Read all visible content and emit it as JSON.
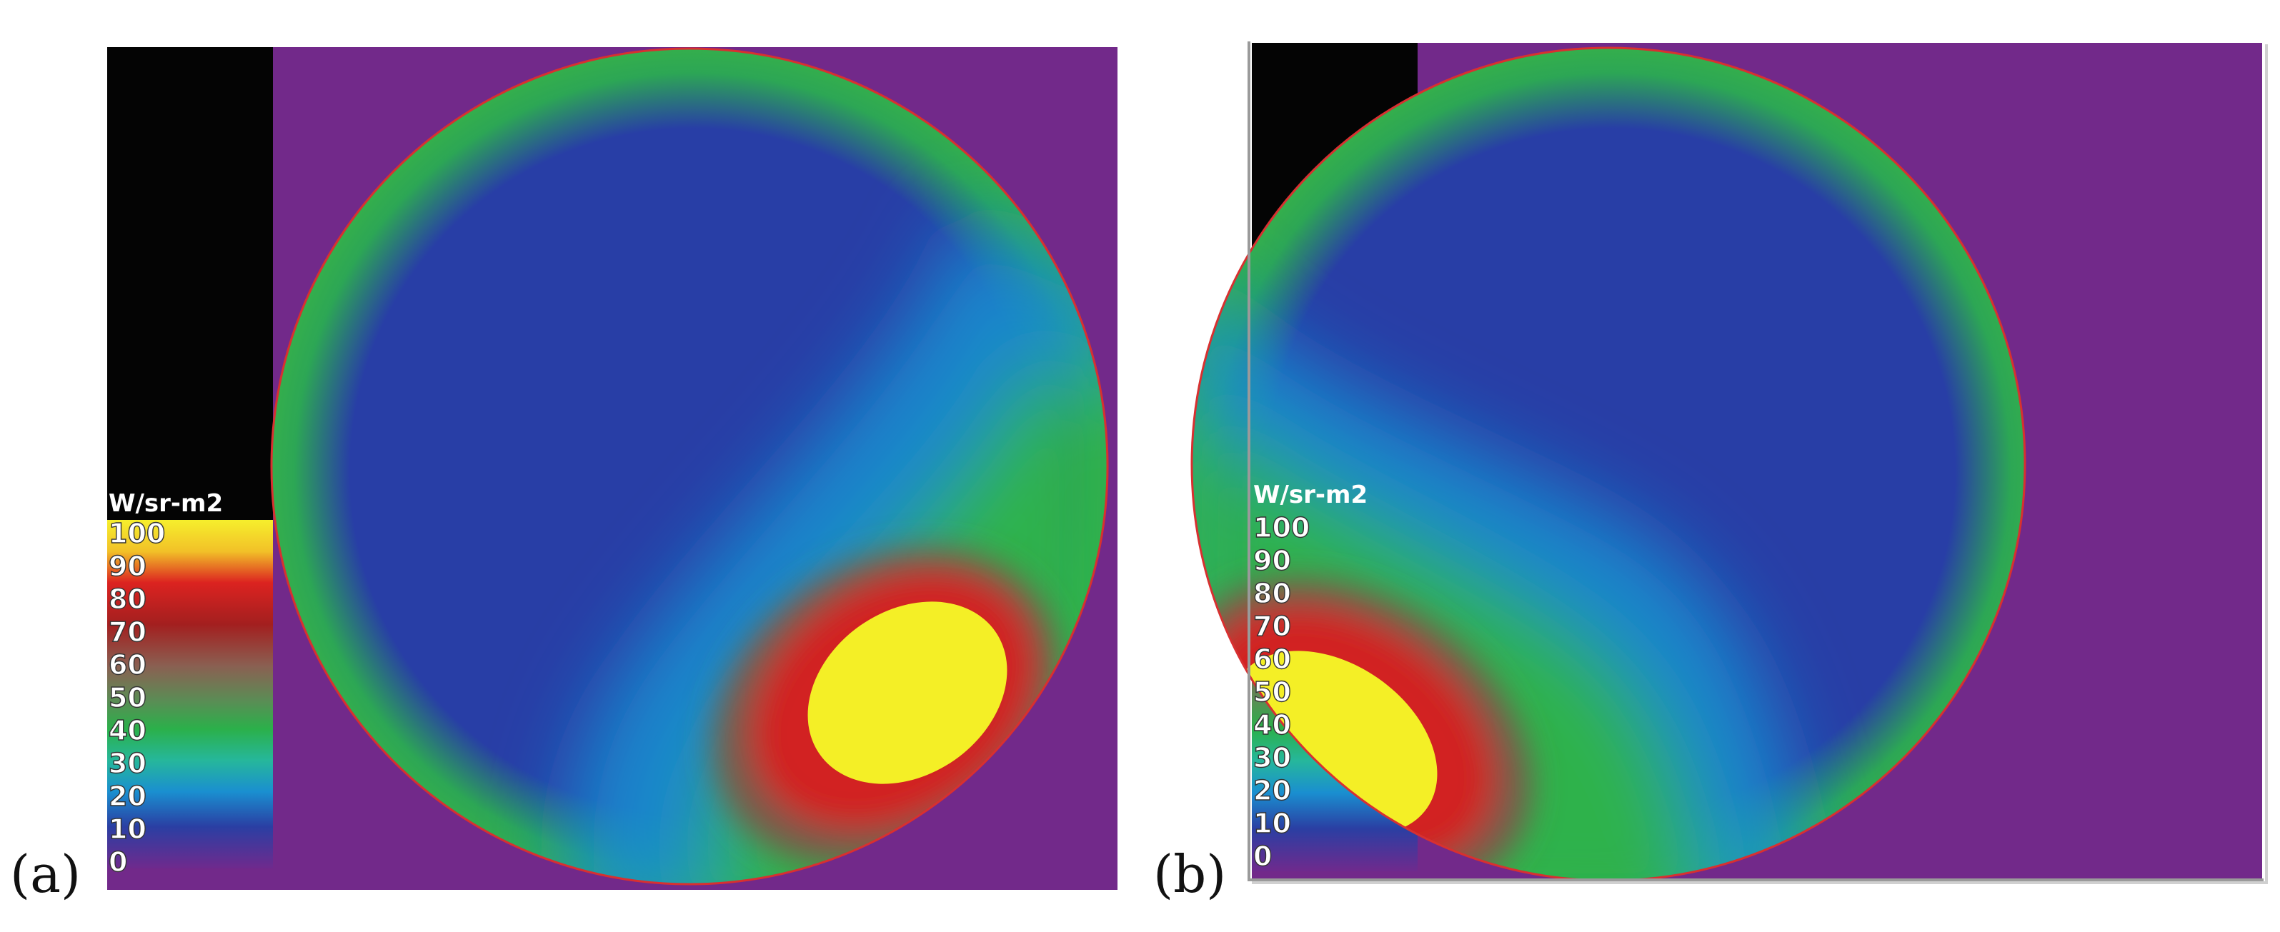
{
  "figure": {
    "panels": [
      {
        "label": "(a)",
        "colorbar": {
          "unit": "W/sr-m2",
          "ticks": [
            "100",
            "90",
            "80",
            "70",
            "60",
            "50",
            "40",
            "30",
            "20",
            "10",
            "0"
          ]
        }
      },
      {
        "label": "(b)",
        "colorbar": {
          "unit": "W/sr-m2",
          "ticks": [
            "100",
            "90",
            "80",
            "70",
            "60",
            "50",
            "40",
            "30",
            "20",
            "10",
            "0"
          ]
        }
      }
    ]
  },
  "colors": {
    "background": "#72298a",
    "colorbar_top": "#040404",
    "scale": [
      "#f6ef2c",
      "#f0a224",
      "#dc2320",
      "#a31f1f",
      "#8a6052",
      "#5a8d55",
      "#2bb04a",
      "#26b79b",
      "#1a8fd0",
      "#2a3fa3",
      "#6f2a8d"
    ],
    "disk_low": "#283ea6",
    "disk_mid": "#1a8ed0",
    "disk_green": "#2db24c",
    "hot": "#f4ef26"
  }
}
